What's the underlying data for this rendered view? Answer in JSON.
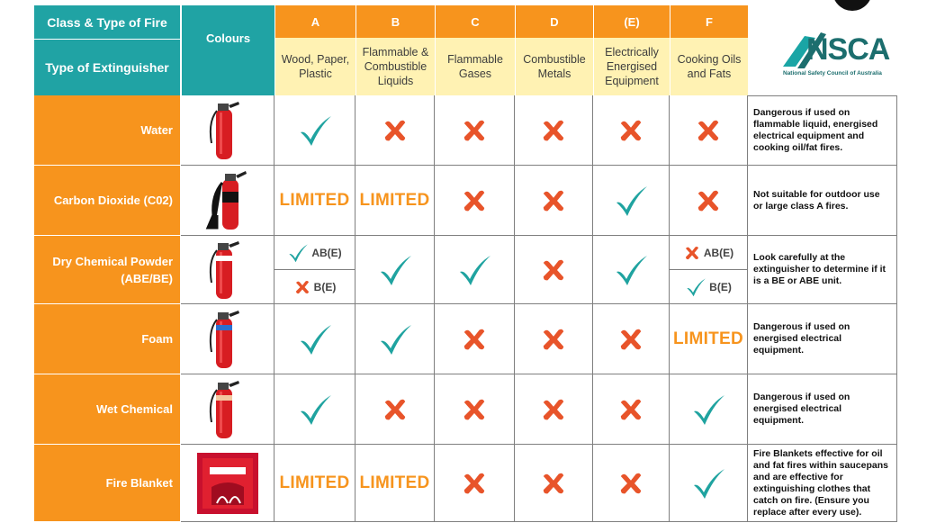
{
  "header": {
    "class_type_label": "Class & Type of Fire",
    "extinguisher_label": "Type of Extinguisher",
    "colours_label": "Colours",
    "classes": [
      {
        "letter": "A",
        "desc": "Wood, Paper, Plastic"
      },
      {
        "letter": "B",
        "desc": "Flammable & Combustible Liquids"
      },
      {
        "letter": "C",
        "desc": "Flammable Gases"
      },
      {
        "letter": "D",
        "desc": "Combustible Metals"
      },
      {
        "letter": "(E)",
        "desc": "Electrically Energised Equipment"
      },
      {
        "letter": "F",
        "desc": "Cooking Oils and Fats"
      }
    ]
  },
  "logo": {
    "text": "NSCA",
    "subtitle": "National Safety Council of Australia",
    "color": "#1c6e6e"
  },
  "colors": {
    "teal": "#20a3a4",
    "orange": "#f7941d",
    "yellow": "#fff2b3",
    "check": "#1fa3a0",
    "cross": "#e8542a"
  },
  "rows": [
    {
      "name": "Water",
      "icon": "red-extinguisher-icon",
      "cells": [
        "check",
        "cross",
        "cross",
        "cross",
        "cross",
        "cross"
      ],
      "note": "Dangerous if used on flammable liquid, energised electrical equipment and cooking oil/fat fires."
    },
    {
      "name": "Carbon Dioxide (C02)",
      "icon": "co2-extinguisher-icon",
      "cells": [
        "LIMITED",
        "LIMITED",
        "cross",
        "cross",
        "check",
        "cross"
      ],
      "note": "Not suitable for outdoor use or large class A fires."
    },
    {
      "name": "Dry Chemical Powder (ABE/BE)",
      "icon": "powder-extinguisher-icon",
      "cells": [
        "split",
        "check",
        "check",
        "cross",
        "check",
        "split"
      ],
      "splitA": {
        "top": "AB(E)",
        "bottom": "B(E)"
      },
      "splitF": {
        "top": "AB(E)",
        "bottom": "B(E)"
      },
      "note": "Look carefully at the extinguisher to determine if it is a BE or ABE unit."
    },
    {
      "name": "Foam",
      "icon": "foam-extinguisher-icon",
      "cells": [
        "check",
        "check",
        "cross",
        "cross",
        "cross",
        "LIMITED"
      ],
      "note": "Dangerous if used on energised electrical equipment."
    },
    {
      "name": "Wet Chemical",
      "icon": "wet-chemical-extinguisher-icon",
      "cells": [
        "check",
        "cross",
        "cross",
        "cross",
        "cross",
        "check"
      ],
      "note": "Dangerous if used on energised electrical equipment."
    },
    {
      "name": "Fire Blanket",
      "icon": "fire-blanket-icon",
      "cells": [
        "LIMITED",
        "LIMITED",
        "cross",
        "cross",
        "cross",
        "check"
      ],
      "note": "Fire Blankets effective for oil and fat fires within saucepans and are effective for extinguishing clothes that catch on fire. (Ensure you replace after every use)."
    }
  ]
}
